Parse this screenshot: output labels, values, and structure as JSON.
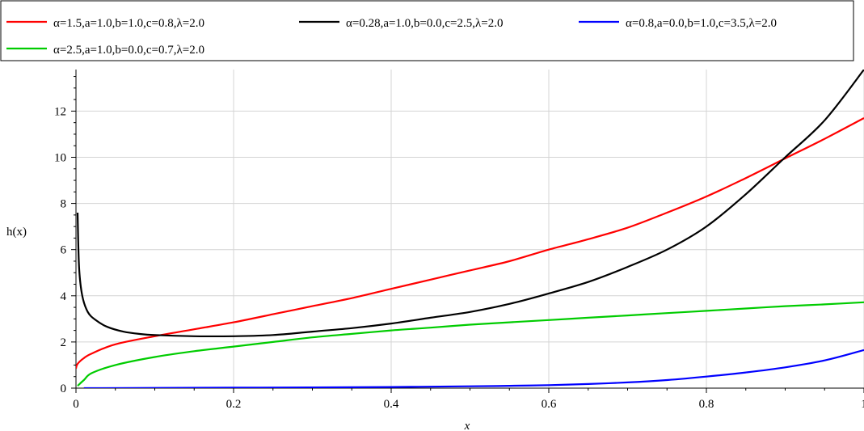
{
  "chart_data": {
    "type": "line",
    "title": "",
    "xlabel": "x",
    "ylabel": "h(x)",
    "xlim": [
      0,
      1
    ],
    "ylim": [
      0,
      13.8
    ],
    "xticks": [
      0,
      0.2,
      0.4,
      0.6,
      0.8,
      1
    ],
    "xtick_labels": [
      "0",
      "0.2",
      "0.4",
      "0.6",
      "0.8",
      "1"
    ],
    "yticks": [
      0,
      2,
      4,
      6,
      8,
      10,
      12
    ],
    "ytick_labels": [
      "0",
      "2",
      "4",
      "6",
      "8",
      "10",
      "12"
    ],
    "grid": true,
    "legend_position": "top",
    "series": [
      {
        "name": "α=1.5,a=1.0,b=1.0,c=0.8,λ=2.0",
        "color": "#ff0000",
        "x": [
          0,
          0.002,
          0.01,
          0.02,
          0.05,
          0.1,
          0.15,
          0.2,
          0.25,
          0.3,
          0.35,
          0.4,
          0.45,
          0.5,
          0.55,
          0.6,
          0.65,
          0.7,
          0.75,
          0.8,
          0.85,
          0.9,
          0.95,
          1.0
        ],
        "y": [
          0.85,
          1.05,
          1.3,
          1.5,
          1.9,
          2.25,
          2.55,
          2.85,
          3.2,
          3.55,
          3.9,
          4.3,
          4.7,
          5.1,
          5.5,
          6.0,
          6.45,
          6.95,
          7.6,
          8.3,
          9.1,
          9.95,
          10.8,
          11.7
        ]
      },
      {
        "name": "α=0.28,a=1.0,b=0.0,c=2.5,λ=2.0",
        "color": "#000000",
        "x": [
          0.002,
          0.004,
          0.008,
          0.015,
          0.025,
          0.04,
          0.06,
          0.08,
          0.1,
          0.15,
          0.2,
          0.25,
          0.3,
          0.35,
          0.4,
          0.45,
          0.5,
          0.55,
          0.6,
          0.65,
          0.7,
          0.75,
          0.8,
          0.85,
          0.9,
          0.95,
          1.0
        ],
        "y": [
          7.6,
          5.2,
          4.0,
          3.3,
          2.95,
          2.65,
          2.45,
          2.35,
          2.3,
          2.25,
          2.25,
          2.3,
          2.45,
          2.6,
          2.8,
          3.05,
          3.3,
          3.65,
          4.1,
          4.6,
          5.25,
          6.0,
          7.0,
          8.4,
          10.0,
          11.6,
          13.8
        ]
      },
      {
        "name": "α=0.8,a=0.0,b=1.0,c=3.5,λ=2.0",
        "color": "#0000ff",
        "x": [
          0.01,
          0.1,
          0.2,
          0.3,
          0.4,
          0.5,
          0.55,
          0.6,
          0.65,
          0.7,
          0.75,
          0.8,
          0.85,
          0.9,
          0.95,
          1.0
        ],
        "y": [
          0.0,
          0.01,
          0.02,
          0.03,
          0.05,
          0.08,
          0.1,
          0.13,
          0.18,
          0.25,
          0.35,
          0.5,
          0.68,
          0.9,
          1.2,
          1.65
        ]
      },
      {
        "name": "α=2.5,a=1.0,b=0.0,c=0.7,λ=2.0",
        "color": "#00cc00",
        "x": [
          0.002,
          0.01,
          0.02,
          0.05,
          0.1,
          0.15,
          0.2,
          0.25,
          0.3,
          0.35,
          0.4,
          0.45,
          0.5,
          0.55,
          0.6,
          0.65,
          0.7,
          0.75,
          0.8,
          0.85,
          0.9,
          0.95,
          1.0
        ],
        "y": [
          0.1,
          0.35,
          0.65,
          1.0,
          1.35,
          1.6,
          1.8,
          2.0,
          2.2,
          2.35,
          2.5,
          2.62,
          2.75,
          2.85,
          2.95,
          3.05,
          3.15,
          3.25,
          3.35,
          3.45,
          3.55,
          3.63,
          3.72
        ]
      }
    ]
  }
}
